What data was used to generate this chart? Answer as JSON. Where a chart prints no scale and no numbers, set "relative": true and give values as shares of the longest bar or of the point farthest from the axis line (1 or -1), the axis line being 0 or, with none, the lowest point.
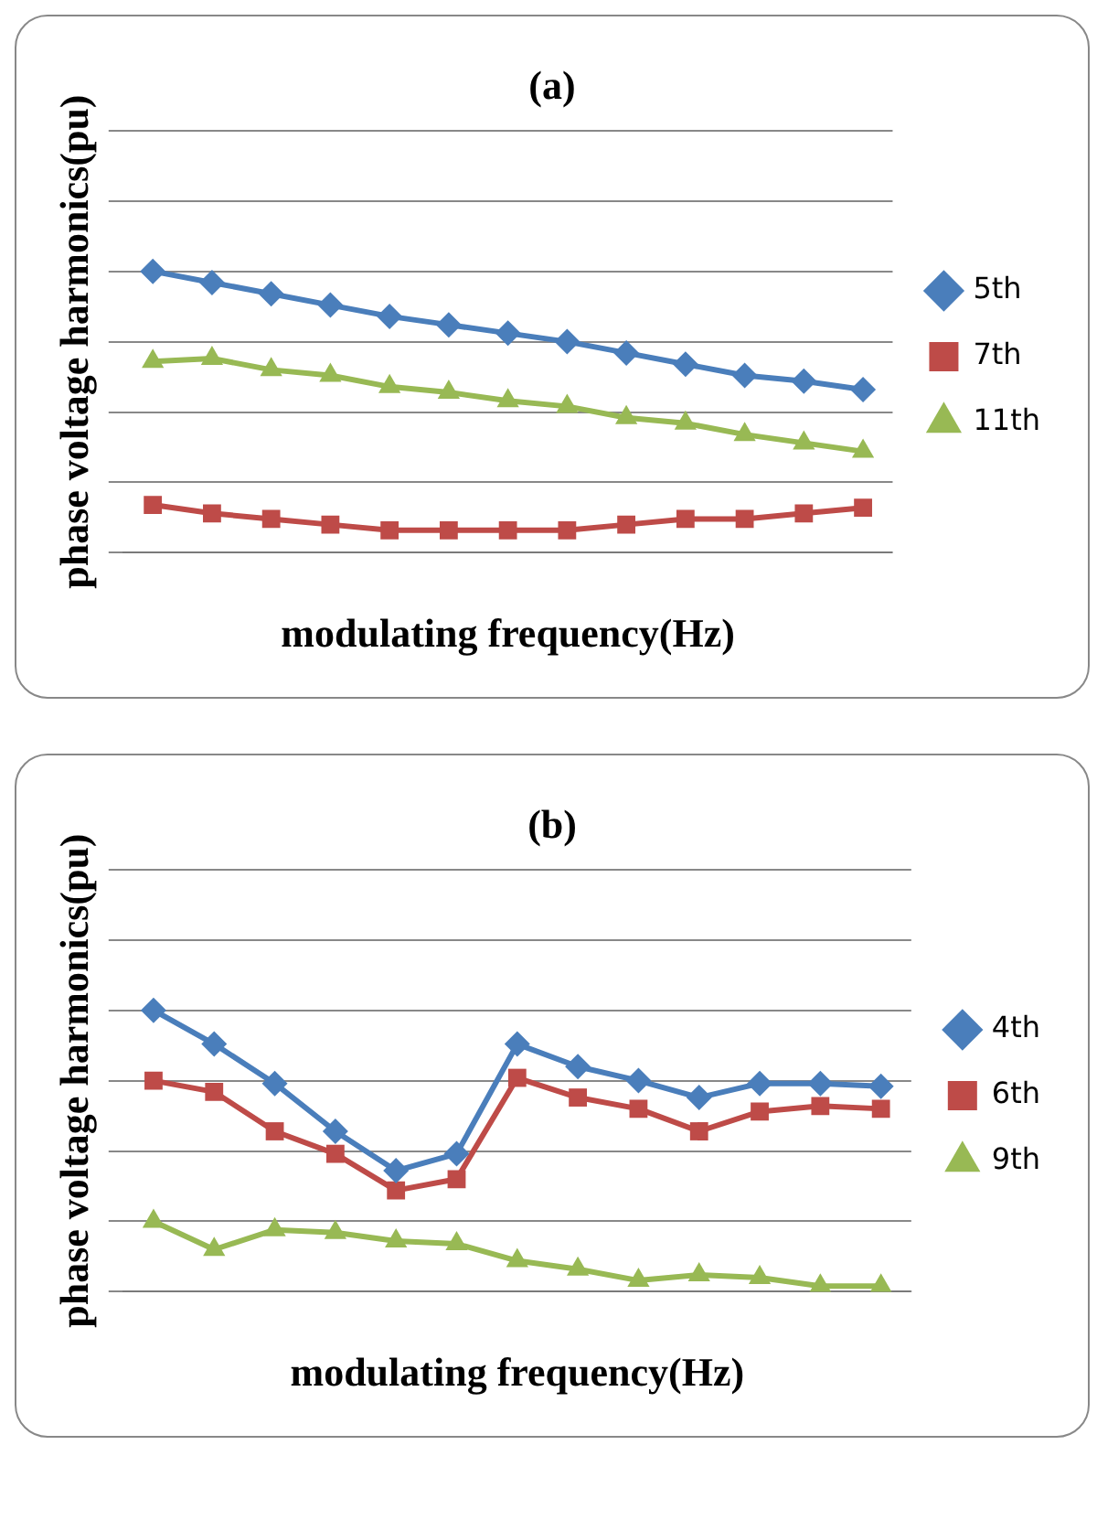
{
  "chart_data": [
    {
      "type": "line",
      "title": "(a)",
      "xlabel": "modulating frequency(Hz)",
      "ylabel": "phase voltage harmonics(pu)",
      "relative": true,
      "grid": "y",
      "legend": "right",
      "line_style": "solid",
      "categories": [
        null,
        null,
        null,
        null,
        null,
        null,
        null,
        null,
        null,
        null,
        null,
        null,
        null
      ],
      "series": [
        {
          "name": "5th",
          "color": "#4a7ebb",
          "marker": "diamond",
          "values": [
            1,
            0.96,
            0.92,
            0.88,
            0.84,
            0.81,
            0.78,
            0.75,
            0.71,
            0.67,
            0.63,
            0.61,
            0.58
          ]
        },
        {
          "name": "7th",
          "color": "#be4b48",
          "marker": "square",
          "values": [
            0.17,
            0.14,
            0.12,
            0.1,
            0.08,
            0.08,
            0.08,
            0.08,
            0.1,
            0.12,
            0.12,
            0.14,
            0.16
          ]
        },
        {
          "name": "11th",
          "color": "#98b954",
          "marker": "triangle",
          "values": [
            0.68,
            0.69,
            0.65,
            0.63,
            0.59,
            0.57,
            0.54,
            0.52,
            0.48,
            0.46,
            0.42,
            0.39,
            0.36
          ]
        }
      ]
    },
    {
      "type": "line",
      "title": "(b)",
      "xlabel": "modulating frequency(Hz)",
      "ylabel": "phase voltage harmonics(pu)",
      "relative": true,
      "grid": "y",
      "legend": "right",
      "line_style": "solid",
      "categories": [
        null,
        null,
        null,
        null,
        null,
        null,
        null,
        null,
        null,
        null,
        null,
        null,
        null
      ],
      "series": [
        {
          "name": "4th",
          "color": "#4a7ebb",
          "marker": "diamond",
          "values": [
            1,
            0.88,
            0.74,
            0.57,
            0.43,
            0.49,
            0.88,
            0.8,
            0.75,
            0.69,
            0.74,
            0.74,
            0.73
          ]
        },
        {
          "name": "6th",
          "color": "#be4b48",
          "marker": "square",
          "values": [
            0.75,
            0.71,
            0.57,
            0.49,
            0.36,
            0.4,
            0.76,
            0.69,
            0.65,
            0.57,
            0.64,
            0.66,
            0.65
          ]
        },
        {
          "name": "9th",
          "color": "#98b954",
          "marker": "triangle",
          "values": [
            0.25,
            0.15,
            0.22,
            0.21,
            0.18,
            0.17,
            0.11,
            0.08,
            0.04,
            0.06,
            0.05,
            0.02,
            0.02
          ]
        }
      ]
    }
  ]
}
